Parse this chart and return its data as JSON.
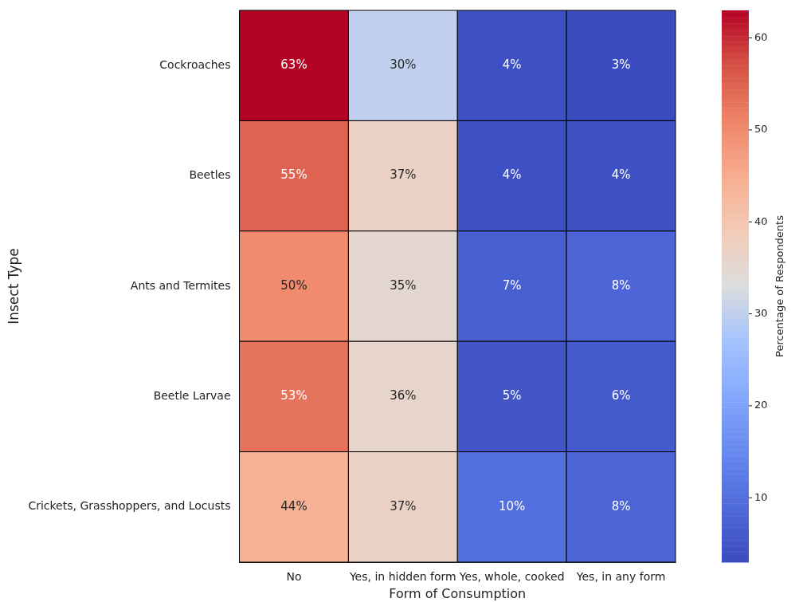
{
  "chart_data": {
    "type": "heatmap",
    "xlabel": "Form of Consumption",
    "ylabel": "Insect Type",
    "clabel": "Percentage of Respondents",
    "categories": [
      "No",
      "Yes, in hidden form",
      "Yes, whole, cooked",
      "Yes, in any form"
    ],
    "y_categories": [
      "Cockroaches",
      "Beetles",
      "Ants and Termites",
      "Beetle Larvae",
      "Crickets, Grasshoppers, and Locusts"
    ],
    "cells": [
      [
        63,
        30,
        4,
        3
      ],
      [
        55,
        37,
        4,
        4
      ],
      [
        50,
        35,
        7,
        8
      ],
      [
        53,
        36,
        5,
        6
      ],
      [
        44,
        37,
        10,
        8
      ]
    ],
    "cell_labels": [
      [
        "63%",
        "30%",
        "4%",
        "3%"
      ],
      [
        "55%",
        "37%",
        "4%",
        "4%"
      ],
      [
        "50%",
        "35%",
        "7%",
        "8%"
      ],
      [
        "53%",
        "36%",
        "5%",
        "6%"
      ],
      [
        "44%",
        "37%",
        "10%",
        "8%"
      ]
    ],
    "clim": [
      3,
      63
    ],
    "cticks": [
      10,
      20,
      30,
      40,
      50,
      60
    ]
  }
}
